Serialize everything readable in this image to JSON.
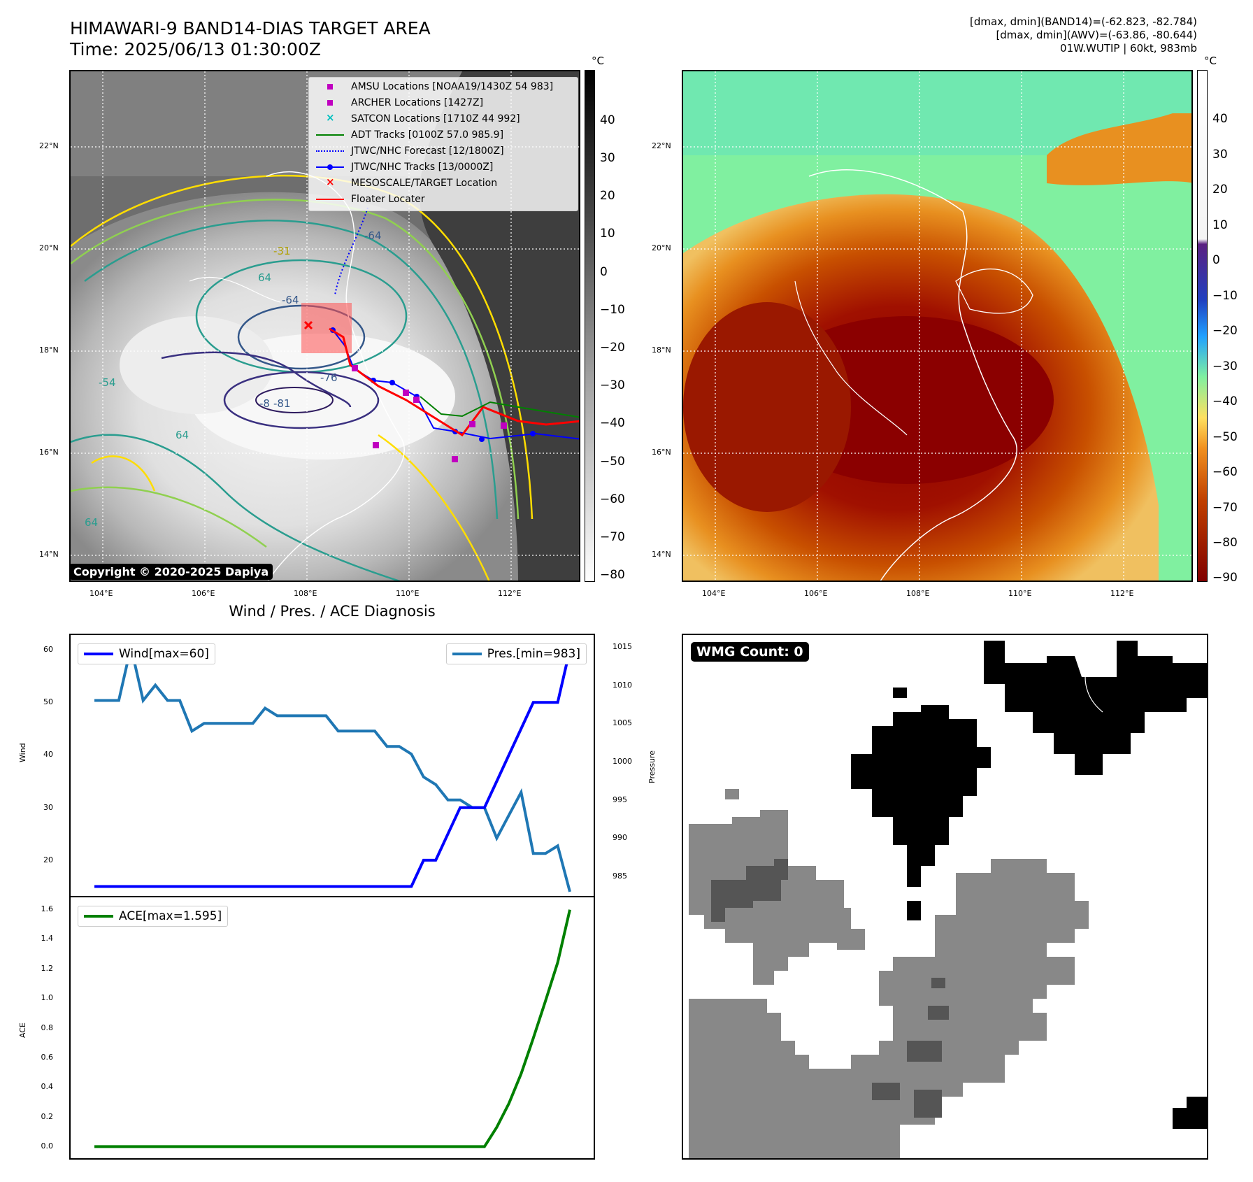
{
  "header": {
    "title_line1": "HIMAWARI-9 BAND14-DIAS TARGET AREA",
    "title_line2": "Time: 2025/06/13 01:30:00Z",
    "info_line1": "[dmax, dmin](BAND14)=(-62.823, -82.784)",
    "info_line2": "[dmax, dmin](AWV)=(-63.86, -80.644)",
    "info_line3": "01W.WUTIP | 60kt, 983mb"
  },
  "map": {
    "lat_labels": [
      "22°N",
      "20°N",
      "18°N",
      "16°N",
      "14°N"
    ],
    "lon_labels": [
      "104°E",
      "106°E",
      "108°E",
      "110°E",
      "112°E"
    ],
    "contour_labels": [
      "-64",
      "-76",
      "-81",
      "-8",
      "-31",
      "64",
      "64",
      "-64",
      "-54",
      "64"
    ],
    "copyright": "Copyright © 2020-2025 Dapiya"
  },
  "legend": {
    "items": [
      {
        "label": "AMSU Locations [NOAA19/1430Z 54 983]",
        "color": "#c000c0",
        "symbol": "square"
      },
      {
        "label": "ARCHER Locations [1427Z]",
        "color": "#c000c0",
        "symbol": "square"
      },
      {
        "label": "SATCON Locations [1710Z 44 992]",
        "color": "#00c0c0",
        "symbol": "x"
      },
      {
        "label": "ADT Tracks [0100Z 57.0 985.9]",
        "color": "#008000",
        "symbol": "line"
      },
      {
        "label": "JTWC/NHC Forecast [12/1800Z]",
        "color": "#0000ff",
        "symbol": "dotted"
      },
      {
        "label": "JTWC/NHC Tracks [13/0000Z]",
        "color": "#0000ff",
        "symbol": "line-dot"
      },
      {
        "label": "MESOSCALE/TARGET Location",
        "color": "#ff0000",
        "symbol": "x"
      },
      {
        "label": "Floater Locater",
        "color": "#ff0000",
        "symbol": "line"
      }
    ]
  },
  "colorbar_gray": {
    "unit": "°C",
    "ticks": [
      "40",
      "30",
      "20",
      "10",
      "0",
      "−10",
      "−20",
      "−30",
      "−40",
      "−50",
      "−60",
      "−70",
      "−80"
    ]
  },
  "colorbar_color": {
    "unit": "°C",
    "ticks": [
      "40",
      "30",
      "20",
      "10",
      "0",
      "−10",
      "−20",
      "−30",
      "−40",
      "−50",
      "−60",
      "−70",
      "−80",
      "−90"
    ]
  },
  "diagnosis": {
    "title": "Wind / Pres. / ACE Diagnosis",
    "wind_legend": "Wind[max=60]",
    "pres_legend": "Pres.[min=983]",
    "ace_legend": "ACE[max=1.595]",
    "wind_axis_label": "Wind",
    "pres_axis_label": "Pressure",
    "ace_axis_label": "ACE",
    "wind_ticks": [
      "60",
      "50",
      "40",
      "30",
      "20"
    ],
    "pres_ticks": [
      "1015",
      "1010",
      "1005",
      "1000",
      "995",
      "990",
      "985"
    ],
    "ace_ticks": [
      "1.6",
      "1.4",
      "1.2",
      "1.0",
      "0.8",
      "0.6",
      "0.4",
      "0.2",
      "0.0"
    ]
  },
  "wmg": {
    "label": "WMG Count: 0"
  },
  "chart_data": [
    {
      "type": "line",
      "title": "Wind / Pres. / ACE Diagnosis",
      "x": [
        0,
        1,
        2,
        3,
        4,
        5,
        6,
        7,
        8,
        9,
        10,
        11,
        12,
        13,
        14,
        15,
        16,
        17,
        18,
        19,
        20,
        21,
        22,
        23,
        24,
        25,
        26,
        27,
        28,
        29,
        30,
        31,
        32,
        33,
        34,
        35,
        36,
        37,
        38,
        39
      ],
      "series": [
        {
          "name": "Wind[max=60]",
          "color": "#0000ff",
          "axis": "left",
          "values": [
            15,
            15,
            15,
            15,
            15,
            15,
            15,
            15,
            15,
            15,
            15,
            15,
            15,
            15,
            15,
            15,
            15,
            15,
            15,
            15,
            15,
            15,
            15,
            15,
            15,
            15,
            15,
            20,
            20,
            25,
            30,
            30,
            30,
            35,
            40,
            45,
            50,
            50,
            50,
            60
          ]
        },
        {
          "name": "Pres.[min=983]",
          "color": "#1f77b4",
          "axis": "right",
          "values": [
            1008,
            1008,
            1008,
            1015,
            1008,
            1010,
            1008,
            1008,
            1004,
            1005,
            1005,
            1005,
            1005,
            1005,
            1007,
            1006,
            1006,
            1006,
            1006,
            1006,
            1004,
            1004,
            1004,
            1004,
            1002,
            1002,
            1001,
            998,
            997,
            995,
            995,
            994,
            994,
            990,
            993,
            996,
            988,
            988,
            989,
            983
          ]
        }
      ],
      "ylim_left": [
        14,
        62
      ],
      "ylim_right": [
        983,
        1016
      ]
    },
    {
      "type": "line",
      "x": [
        0,
        1,
        2,
        3,
        4,
        5,
        6,
        7,
        8,
        9,
        10,
        11,
        12,
        13,
        14,
        15,
        16,
        17,
        18,
        19,
        20,
        21,
        22,
        23,
        24,
        25,
        26,
        27,
        28,
        29,
        30,
        31,
        32,
        33,
        34,
        35,
        36,
        37,
        38,
        39
      ],
      "series": [
        {
          "name": "ACE[max=1.595]",
          "color": "#008000",
          "values": [
            0,
            0,
            0,
            0,
            0,
            0,
            0,
            0,
            0,
            0,
            0,
            0,
            0,
            0,
            0,
            0,
            0,
            0,
            0,
            0,
            0,
            0,
            0,
            0,
            0,
            0,
            0,
            0,
            0,
            0,
            0,
            0,
            0,
            0.13,
            0.29,
            0.49,
            0.73,
            0.98,
            1.24,
            1.595
          ]
        }
      ],
      "ylim": [
        -0.05,
        1.65
      ]
    }
  ]
}
